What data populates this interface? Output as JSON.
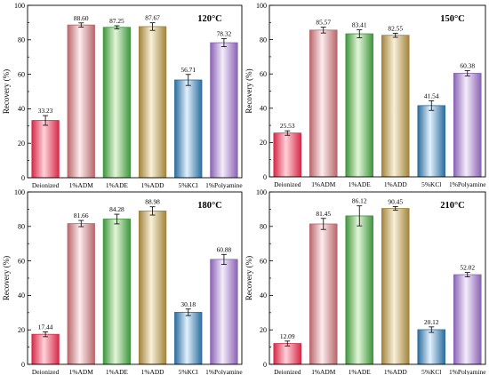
{
  "chart_data": [
    {
      "type": "bar",
      "annotation": "120°C",
      "ylabel": "Recovery (%)",
      "ylim": [
        0,
        100
      ],
      "yticks": [
        0,
        20,
        40,
        60,
        80,
        100
      ],
      "categories": [
        "Deionized",
        "1%ADM",
        "1%ADE",
        "1%ADD",
        "5%KCl",
        "1%Polyamine"
      ],
      "values": [
        33.23,
        88.6,
        87.25,
        87.67,
        56.71,
        78.32
      ],
      "value_labels": [
        "33.23",
        "88.60",
        "87.25",
        "87.67",
        "56.71",
        "78.32"
      ],
      "errors": [
        2.8,
        1.2,
        0.9,
        2.2,
        3.2,
        2.3
      ]
    },
    {
      "type": "bar",
      "annotation": "150°C",
      "ylabel": "Recovery (%)",
      "ylim": [
        0,
        100
      ],
      "yticks": [
        0,
        20,
        40,
        60,
        80,
        100
      ],
      "categories": [
        "Deionized",
        "1%ADM",
        "1%ADE",
        "1%ADD",
        "5%KCl",
        "1%Polyamine"
      ],
      "values": [
        25.53,
        85.57,
        83.41,
        82.55,
        41.54,
        60.38
      ],
      "value_labels": [
        "25.53",
        "85.57",
        "83.41",
        "82.55",
        "41.54",
        "60.38"
      ],
      "errors": [
        1.3,
        1.7,
        2.3,
        1.2,
        2.8,
        1.5
      ]
    },
    {
      "type": "bar",
      "annotation": "180°C",
      "ylabel": "Recovery (%)",
      "ylim": [
        0,
        100
      ],
      "yticks": [
        0,
        20,
        40,
        60,
        80,
        100
      ],
      "categories": [
        "Deionized",
        "1%ADM",
        "1%ADE",
        "1%ADD",
        "5%KCl",
        "1%Polyamine"
      ],
      "values": [
        17.44,
        81.66,
        84.28,
        88.98,
        30.18,
        60.88
      ],
      "value_labels": [
        "17.44",
        "81.66",
        "84.28",
        "88.98",
        "30.18",
        "60.88"
      ],
      "errors": [
        1.4,
        1.8,
        2.8,
        2.4,
        1.9,
        2.9
      ]
    },
    {
      "type": "bar",
      "annotation": "210°C",
      "ylabel": "Recovery (%)",
      "ylim": [
        0,
        100
      ],
      "yticks": [
        0,
        20,
        40,
        60,
        80,
        100
      ],
      "categories": [
        "Deionized",
        "1%ADM",
        "1%ADE",
        "1%ADD",
        "5%KCl",
        "1%Polyamine"
      ],
      "values": [
        12.09,
        81.45,
        86.12,
        90.45,
        20.12,
        52.02
      ],
      "value_labels": [
        "12.09",
        "81.45",
        "86.12",
        "90.45",
        "20.12",
        "52.02"
      ],
      "errors": [
        1.4,
        3.2,
        5.8,
        1.1,
        1.6,
        1.3
      ]
    }
  ],
  "colors": {
    "bar_dark": [
      "#d62a48",
      "#b8686c",
      "#3e963e",
      "#a2843c",
      "#2c6d9e",
      "#8a64b4"
    ],
    "bar_light": [
      "#ffd2da",
      "#fcecec",
      "#e4f5d8",
      "#f8f0da",
      "#e2f0fc",
      "#f4ecfc"
    ],
    "axis": "#000000"
  }
}
